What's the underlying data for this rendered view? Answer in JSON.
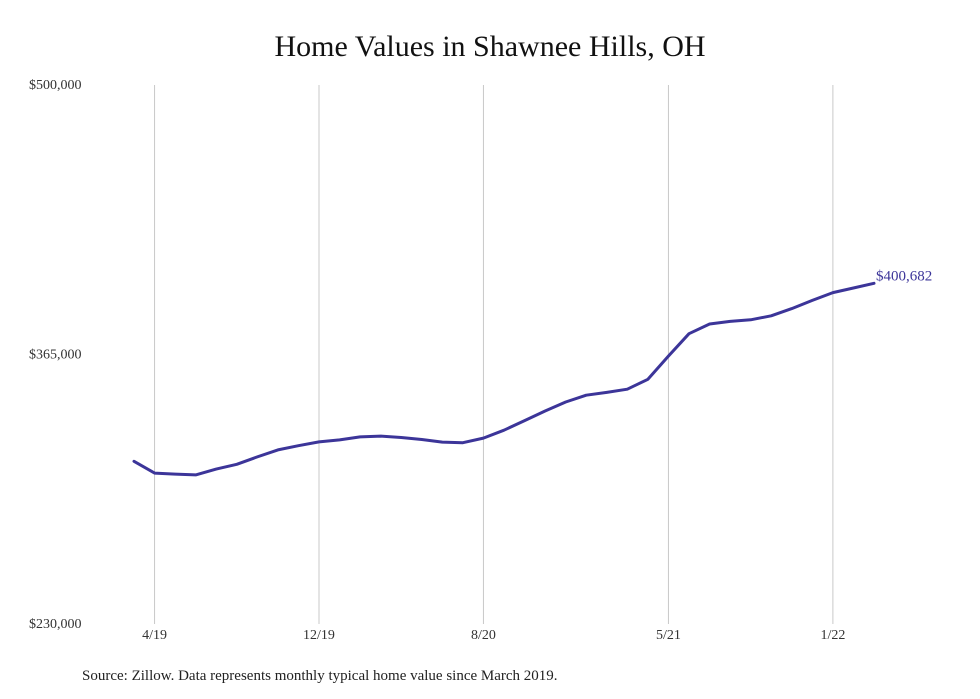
{
  "chart_data": {
    "type": "line",
    "title": "Home Values in Shawnee Hills, OH",
    "xlabel": "",
    "ylabel": "",
    "ylim": [
      230000,
      500000
    ],
    "y_ticks": [
      "$230,000",
      "$365,000",
      "$500,000"
    ],
    "y_tick_values": [
      230000,
      365000,
      500000
    ],
    "x_ticks": [
      "4/19",
      "12/19",
      "8/20",
      "5/21",
      "1/22"
    ],
    "x_tick_dates": [
      "2019-04",
      "2019-12",
      "2020-08",
      "2021-05",
      "2022-01"
    ],
    "grid": "vertical",
    "line_color": "#3c3599",
    "end_label": "$400,682",
    "series": [
      {
        "x": [
          "2019-03",
          "2019-04",
          "2019-05",
          "2019-06",
          "2019-07",
          "2019-08",
          "2019-09",
          "2019-10",
          "2019-11",
          "2019-12",
          "2020-01",
          "2020-02",
          "2020-03",
          "2020-04",
          "2020-05",
          "2020-06",
          "2020-07",
          "2020-08",
          "2020-09",
          "2020-10",
          "2020-11",
          "2020-12",
          "2021-01",
          "2021-02",
          "2021-03",
          "2021-04",
          "2021-05",
          "2021-06",
          "2021-07",
          "2021-08",
          "2021-09",
          "2021-10",
          "2021-11",
          "2021-12",
          "2022-01",
          "2022-02",
          "2022-03"
        ],
        "values": [
          311500,
          305600,
          305100,
          304700,
          307600,
          310000,
          313700,
          317200,
          319300,
          321200,
          322200,
          323700,
          324100,
          323400,
          322400,
          321100,
          320800,
          323100,
          327100,
          331900,
          336700,
          341200,
          344600,
          346000,
          347600,
          352600,
          364200,
          375400,
          380300,
          381600,
          382400,
          384400,
          388000,
          392100,
          396000,
          398300,
          400682
        ]
      }
    ]
  },
  "source_note": "Source: Zillow. Data represents monthly typical home value since March 2019."
}
